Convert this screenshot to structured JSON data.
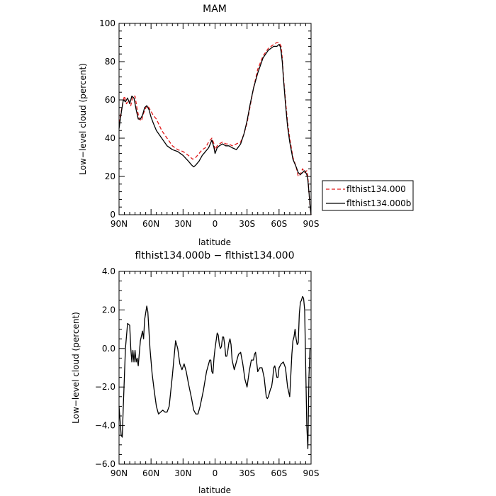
{
  "chart_data": [
    {
      "type": "line",
      "title": "MAM",
      "xlabel": "latitude",
      "ylabel": "Low−level cloud (percent)",
      "xlim": [
        90,
        -90
      ],
      "ylim": [
        0,
        100
      ],
      "x_ticks": [
        90,
        60,
        30,
        0,
        -30,
        -60,
        -90
      ],
      "x_tick_labels": [
        "90N",
        "60N",
        "30N",
        "0",
        "30S",
        "60S",
        "90S"
      ],
      "y_ticks": [
        0,
        20,
        40,
        60,
        80,
        100
      ],
      "y_tick_labels": [
        "0",
        "20",
        "40",
        "60",
        "80",
        "100"
      ],
      "legend_position": "right",
      "series": [
        {
          "name": "flthist134.000",
          "color": "#e0191a",
          "dash": "dashed",
          "x": [
            90,
            87,
            85,
            83,
            81,
            79,
            77,
            75,
            73,
            71,
            69,
            67,
            64,
            62,
            60,
            58,
            55,
            50,
            45,
            40,
            35,
            30,
            25,
            21,
            18,
            15,
            12,
            9,
            6,
            3,
            1,
            0,
            -2,
            -4,
            -7,
            -10,
            -13,
            -16,
            -20,
            -24,
            -27,
            -30,
            -33,
            -36,
            -40,
            -45,
            -50,
            -55,
            -58,
            -60,
            -62,
            -63,
            -64,
            -66,
            -68,
            -70,
            -73,
            -76,
            -78,
            -80,
            -82,
            -84,
            -86,
            -87,
            -88,
            -89,
            -90
          ],
          "y": [
            48,
            57,
            62,
            58,
            60,
            57,
            62,
            62,
            55,
            50,
            49,
            53,
            57,
            56,
            54,
            52,
            50,
            44,
            40,
            36,
            34,
            33,
            31,
            29,
            30,
            32,
            34,
            35,
            38,
            40,
            37,
            34,
            36,
            37,
            38,
            37,
            37,
            36,
            37,
            38,
            42,
            48,
            57,
            66,
            76,
            83,
            87,
            89,
            90,
            90,
            88,
            82,
            73,
            60,
            48,
            40,
            30,
            25,
            20,
            21,
            24,
            22,
            23,
            20,
            12,
            5,
            0
          ]
        },
        {
          "name": "flthist134.000b",
          "color": "#000000",
          "dash": "solid",
          "x": [
            90,
            88,
            86,
            84,
            82,
            80,
            78,
            76,
            74,
            72,
            70,
            68,
            66,
            64,
            62,
            60,
            58,
            55,
            50,
            45,
            40,
            35,
            30,
            25,
            22,
            20,
            18,
            15,
            12,
            9,
            6,
            3,
            1,
            0,
            -2,
            -4,
            -7,
            -10,
            -13,
            -16,
            -20,
            -24,
            -27,
            -30,
            -33,
            -36,
            -40,
            -45,
            -50,
            -55,
            -58,
            -60,
            -61,
            -62,
            -63,
            -64,
            -66,
            -68,
            -70,
            -73,
            -76,
            -78,
            -80,
            -82,
            -84,
            -86,
            -87,
            -88,
            -89,
            -90
          ],
          "y": [
            45,
            53,
            60,
            59,
            61,
            58,
            62,
            61,
            55,
            50,
            50,
            52,
            56,
            57,
            55,
            51,
            48,
            44,
            40,
            36,
            34,
            33,
            31,
            28,
            26,
            25,
            26,
            28,
            31,
            33,
            35,
            39,
            35,
            32,
            35,
            36,
            37,
            36,
            36,
            35,
            34,
            37,
            42,
            49,
            58,
            66,
            74,
            82,
            86,
            88,
            88,
            89,
            88,
            85,
            80,
            72,
            58,
            46,
            38,
            29,
            25,
            22,
            21,
            22,
            23,
            21,
            18,
            12,
            5,
            0
          ]
        }
      ]
    },
    {
      "type": "line",
      "title": "flthist134.000b − flthist134.000",
      "xlabel": "latitude",
      "ylabel": "Low−level cloud (percent)",
      "xlim": [
        90,
        -90
      ],
      "ylim": [
        -6,
        4
      ],
      "x_ticks": [
        90,
        60,
        30,
        0,
        -30,
        -60,
        -90
      ],
      "x_tick_labels": [
        "90N",
        "60N",
        "30N",
        "0",
        "30S",
        "60S",
        "90S"
      ],
      "y_ticks": [
        -6,
        -4,
        -2,
        0,
        2,
        4
      ],
      "y_tick_labels": [
        "−6.0",
        "−4.0",
        "−2.0",
        "0.0",
        "2.0",
        "4.0"
      ],
      "series": [
        {
          "color": "#000000",
          "dash": "solid",
          "x": [
            90,
            88,
            87,
            86,
            84,
            82,
            80,
            79,
            78,
            77,
            76,
            75,
            74,
            73,
            72,
            70,
            68,
            67,
            66,
            64,
            63,
            61,
            59,
            57,
            55,
            53,
            51,
            49,
            47,
            45,
            43,
            40,
            37,
            35,
            33,
            31,
            29,
            27,
            25,
            22,
            20,
            18,
            16,
            14,
            11,
            8,
            5,
            4,
            3,
            2,
            1,
            0,
            -2,
            -3,
            -4,
            -5,
            -6,
            -7,
            -8,
            -9,
            -10,
            -11,
            -12,
            -13,
            -14,
            -15,
            -16,
            -18,
            -20,
            -22,
            -24,
            -26,
            -28,
            -30,
            -32,
            -34,
            -36,
            -37,
            -38,
            -39,
            -40,
            -42,
            -44,
            -46,
            -47,
            -48,
            -49,
            -50,
            -51,
            -52,
            -53,
            -54,
            -55,
            -56,
            -57,
            -58,
            -59,
            -60,
            -62,
            -64,
            -66,
            -68,
            -70,
            -72,
            -73,
            -74,
            -75,
            -76,
            -77,
            -78,
            -79,
            -80,
            -81,
            -82,
            -83,
            -84,
            -85,
            -86,
            -87,
            -88,
            -89,
            -90
          ],
          "y": [
            -3.0,
            -4.5,
            -4.6,
            -3.0,
            0.0,
            1.3,
            1.2,
            0.0,
            -0.7,
            -0.1,
            -0.7,
            -0.1,
            -0.7,
            -0.5,
            -0.9,
            0.4,
            0.9,
            0.5,
            1.5,
            2.2,
            1.9,
            0.0,
            -1.3,
            -2.2,
            -3.0,
            -3.4,
            -3.3,
            -3.2,
            -3.3,
            -3.3,
            -3.0,
            -1.4,
            0.4,
            0.0,
            -0.8,
            -1.1,
            -0.8,
            -1.2,
            -1.8,
            -2.6,
            -3.2,
            -3.4,
            -3.4,
            -3.0,
            -2.2,
            -1.2,
            -0.6,
            -0.6,
            -1.2,
            -1.3,
            -0.5,
            0.0,
            0.8,
            0.7,
            0.2,
            0.0,
            0.1,
            0.6,
            0.6,
            0.2,
            -0.4,
            -0.4,
            -0.1,
            0.3,
            0.5,
            0.2,
            -0.6,
            -1.1,
            -0.7,
            -0.3,
            -0.2,
            -0.8,
            -1.6,
            -2.0,
            -1.2,
            -0.6,
            -0.6,
            -0.3,
            -0.2,
            -0.7,
            -1.2,
            -1.0,
            -1.0,
            -1.5,
            -2.0,
            -2.5,
            -2.6,
            -2.5,
            -2.3,
            -2.1,
            -2.0,
            -1.6,
            -1.0,
            -0.9,
            -1.2,
            -1.5,
            -1.5,
            -1.0,
            -0.8,
            -0.7,
            -1.0,
            -2.0,
            -2.5,
            -0.3,
            0.4,
            0.6,
            1.0,
            0.5,
            0.2,
            0.3,
            1.8,
            2.4,
            2.5,
            2.7,
            2.6,
            2.0,
            -1.0,
            -4.0,
            -5.2,
            -1.5,
            0.0,
            0.0
          ]
        }
      ]
    }
  ]
}
